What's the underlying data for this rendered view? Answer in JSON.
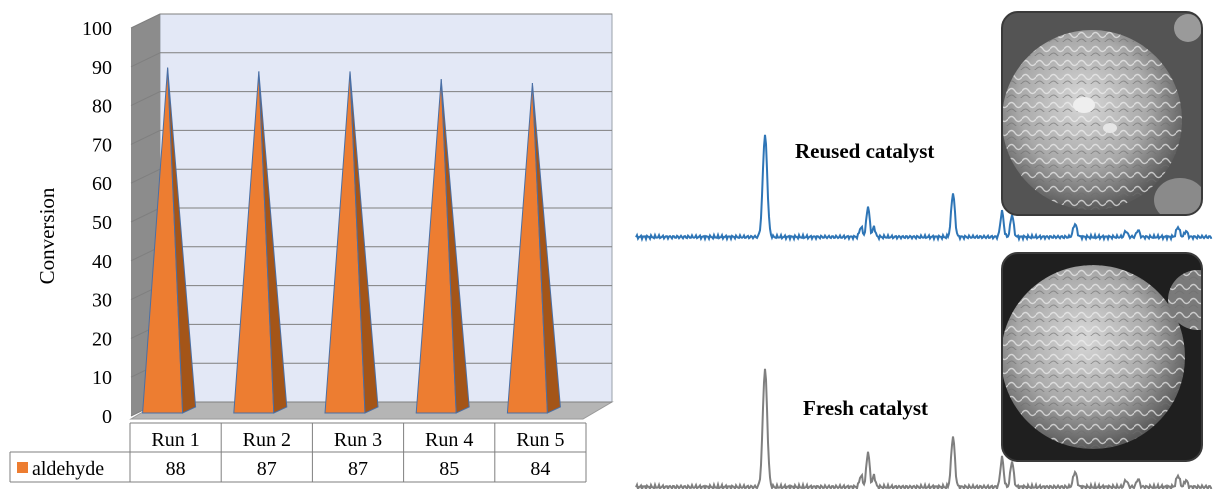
{
  "chart_data": {
    "type": "bar",
    "style": "3d-cone-with-data-table",
    "categories": [
      "Run 1",
      "Run 2",
      "Run 3",
      "Run 4",
      "Run 5"
    ],
    "series": [
      {
        "name": "aldehyde",
        "values": [
          88,
          87,
          87,
          85,
          84
        ],
        "color": "#ed7d31"
      }
    ],
    "title": "",
    "xlabel": "",
    "ylabel": "Conversion",
    "ylim": [
      0,
      100
    ],
    "yticks": [
      0,
      10,
      20,
      30,
      40,
      50,
      60,
      70,
      80,
      90,
      100
    ],
    "grid": true,
    "legend": "data-table",
    "colors": {
      "wall": "#e3e8f6",
      "wall_side": "#8c8c8c",
      "floor": "#b5b5b5",
      "grid": "#7f7f7f",
      "cone_light": "#ed7d31",
      "cone_dark": "#a45518",
      "cone_edge": "#4a6fa5"
    }
  },
  "xrd_panel": {
    "reused_label": "Reused catalyst",
    "fresh_label": "Fresh catalyst",
    "reused_color": "#2e75b6",
    "fresh_color": "#7f7f7f"
  }
}
